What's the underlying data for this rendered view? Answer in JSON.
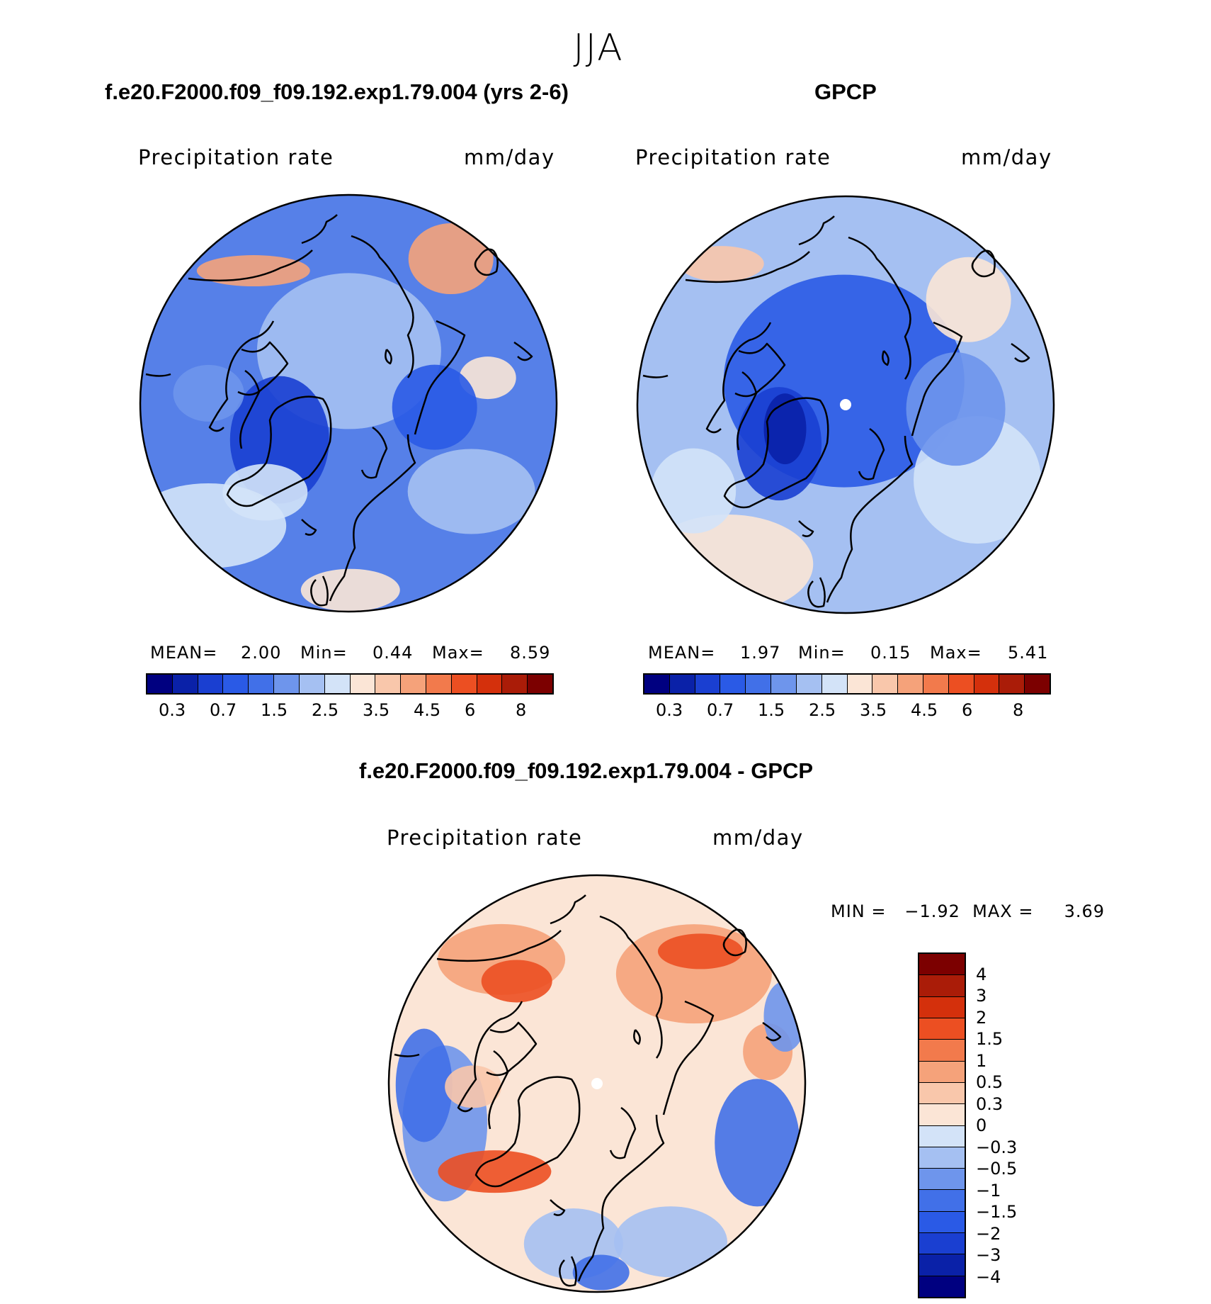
{
  "title": "JJA",
  "panels": [
    {
      "id": "model",
      "heading": "f.e20.F2000.f09_f09.192.exp1.79.004 (yrs 2-6)",
      "variable": "Precipitation rate",
      "units": "mm/day",
      "stats": {
        "mean_label": "MEAN=",
        "mean": "2.00",
        "min_label": "Min=",
        "min": "0.44",
        "max_label": "Max=",
        "max": "8.59"
      }
    },
    {
      "id": "gpcp",
      "heading": "GPCP",
      "variable": "Precipitation rate",
      "units": "mm/day",
      "stats": {
        "mean_label": "MEAN=",
        "mean": "1.97",
        "min_label": "Min=",
        "min": "0.15",
        "max_label": "Max=",
        "max": "5.41"
      }
    },
    {
      "id": "diff",
      "heading": "f.e20.F2000.f09_f09.192.exp1.79.004 - GPCP",
      "variable": "Precipitation rate",
      "units": "mm/day",
      "stats_text": "MIN =   −1.92  MAX =     3.69"
    }
  ],
  "abs_colorbar": {
    "colors": [
      "#000080",
      "#0a21a8",
      "#1a3fd1",
      "#2a5ae6",
      "#4170e8",
      "#6e95ec",
      "#a5c0f2",
      "#d3e3f8",
      "#fbe5d6",
      "#f9c7ab",
      "#f5a27a",
      "#f27a4c",
      "#ec4f22",
      "#d4300c",
      "#aa1c08",
      "#7c0000"
    ],
    "tick_labels": [
      "0.3",
      "0.7",
      "1.5",
      "2.5",
      "3.5",
      "4.5",
      "6",
      "8"
    ]
  },
  "diff_colorbar": {
    "colors": [
      "#7c0000",
      "#aa1c08",
      "#d4300c",
      "#ec4f22",
      "#f27a4c",
      "#f5a27a",
      "#f9c7ab",
      "#fbe5d6",
      "#d3e3f8",
      "#a5c0f2",
      "#6e95ec",
      "#4170e8",
      "#2a5ae6",
      "#1a3fd1",
      "#0a21a8",
      "#000080"
    ],
    "tick_labels": [
      "4",
      "3",
      "2",
      "1.5",
      "1",
      "0.5",
      "0.3",
      "0",
      "−0.3",
      "−0.5",
      "−1",
      "−1.5",
      "−2",
      "−3",
      "−4"
    ]
  },
  "map_colors": {
    "model": {
      "base": "#5680e8",
      "blobs": [
        "#2a5ae6",
        "#1a3fd1",
        "#a5c0f2",
        "#d3e3f8",
        "#fbe5d6",
        "#f5a27a",
        "#ec4f22",
        "#6e95ec"
      ]
    },
    "gpcp": {
      "base": "#a5c0f2",
      "blobs": [
        "#2a5ae6",
        "#1a3fd1",
        "#0a21a8",
        "#d3e3f8",
        "#fbe5d6",
        "#f9c7ab",
        "#ec4f22",
        "#6e95ec"
      ]
    },
    "diff": {
      "base": "#fbe5d6",
      "blobs": [
        "#f9c7ab",
        "#f5a27a",
        "#ec4f22",
        "#6e95ec",
        "#4170e8",
        "#a5c0f2",
        "#2a5ae6",
        "#d3e3f8"
      ]
    }
  }
}
